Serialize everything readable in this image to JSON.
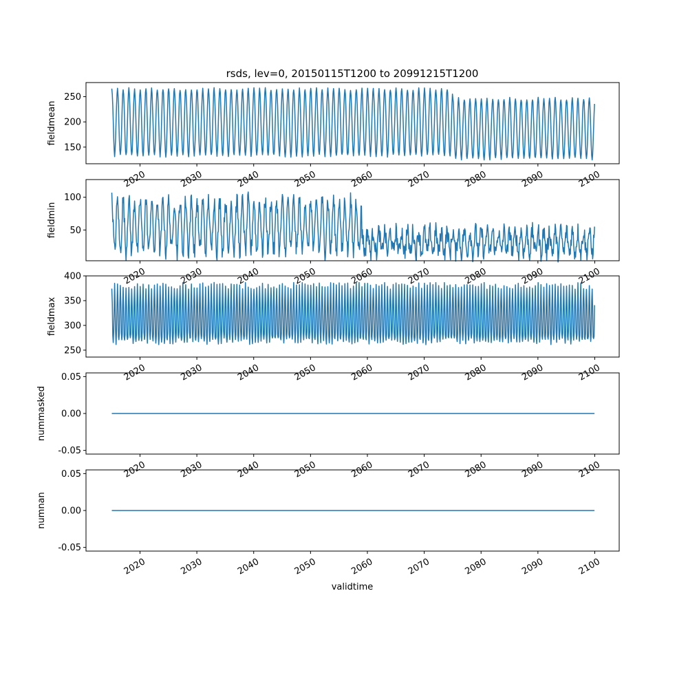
{
  "title": "rsds, lev=0, 20150115T1200 to 20991215T1200",
  "xlabel": "validtime",
  "series_color": "#1f77b4",
  "chart_data": [
    {
      "type": "line",
      "ylabel": "fieldmean",
      "xlim": [
        2010.5,
        2104.3
      ],
      "ylim": [
        117,
        278
      ],
      "x_range": [
        2015.04,
        2099.96
      ],
      "x_ticks": [
        "2020",
        "2030",
        "2040",
        "2050",
        "2060",
        "2070",
        "2080",
        "2090",
        "2100"
      ],
      "y_ticks": [
        "150",
        "200",
        "250"
      ],
      "pattern": "seasonal",
      "segments": [
        {
          "from": 2015,
          "to": 2075,
          "peak": 265,
          "trough": 133
        },
        {
          "from": 2075,
          "to": 2100,
          "peak": 246,
          "trough": 127
        }
      ],
      "noise": 3
    },
    {
      "type": "line",
      "ylabel": "fieldmin",
      "xlim": [
        2010.5,
        2104.3
      ],
      "ylim": [
        3,
        127
      ],
      "x_range": [
        2015.04,
        2099.96
      ],
      "x_ticks": [
        "2020",
        "2030",
        "2040",
        "2050",
        "2060",
        "2070",
        "2080",
        "2090",
        "2100"
      ],
      "y_ticks": [
        "50",
        "100"
      ],
      "pattern": "seasonal",
      "segments": [
        {
          "from": 2015,
          "to": 2059,
          "peak": 95,
          "trough": 17
        },
        {
          "from": 2059,
          "to": 2100,
          "peak": 48,
          "trough": 15
        }
      ],
      "noise": 14
    },
    {
      "type": "line",
      "ylabel": "fieldmax",
      "xlim": [
        2010.5,
        2104.3
      ],
      "ylim": [
        236,
        400
      ],
      "x_range": [
        2015.04,
        2099.96
      ],
      "x_ticks": [
        "2020",
        "2030",
        "2040",
        "2050",
        "2060",
        "2070",
        "2080",
        "2090",
        "2100"
      ],
      "y_ticks": [
        "250",
        "300",
        "350",
        "400"
      ],
      "pattern": "double-peak",
      "segments": [
        {
          "from": 2015,
          "to": 2100,
          "peak": 380,
          "trough": 268
        }
      ],
      "noise": 7
    },
    {
      "type": "line",
      "ylabel": "nummasked",
      "xlim": [
        2010.5,
        2104.3
      ],
      "ylim": [
        -0.055,
        0.055
      ],
      "x_range": [
        2015.04,
        2099.96
      ],
      "x_ticks": [
        "2020",
        "2030",
        "2040",
        "2050",
        "2060",
        "2070",
        "2080",
        "2090",
        "2100"
      ],
      "y_ticks": [
        "0.05",
        "0.00",
        "-0.05"
      ],
      "pattern": "constant",
      "value": 0.0
    },
    {
      "type": "line",
      "ylabel": "numnan",
      "xlim": [
        2010.5,
        2104.3
      ],
      "ylim": [
        -0.055,
        0.055
      ],
      "x_range": [
        2015.04,
        2099.96
      ],
      "x_ticks": [
        "2020",
        "2030",
        "2040",
        "2050",
        "2060",
        "2070",
        "2080",
        "2090",
        "2100"
      ],
      "y_ticks": [
        "0.05",
        "0.00",
        "-0.05"
      ],
      "pattern": "constant",
      "value": 0.0
    }
  ]
}
